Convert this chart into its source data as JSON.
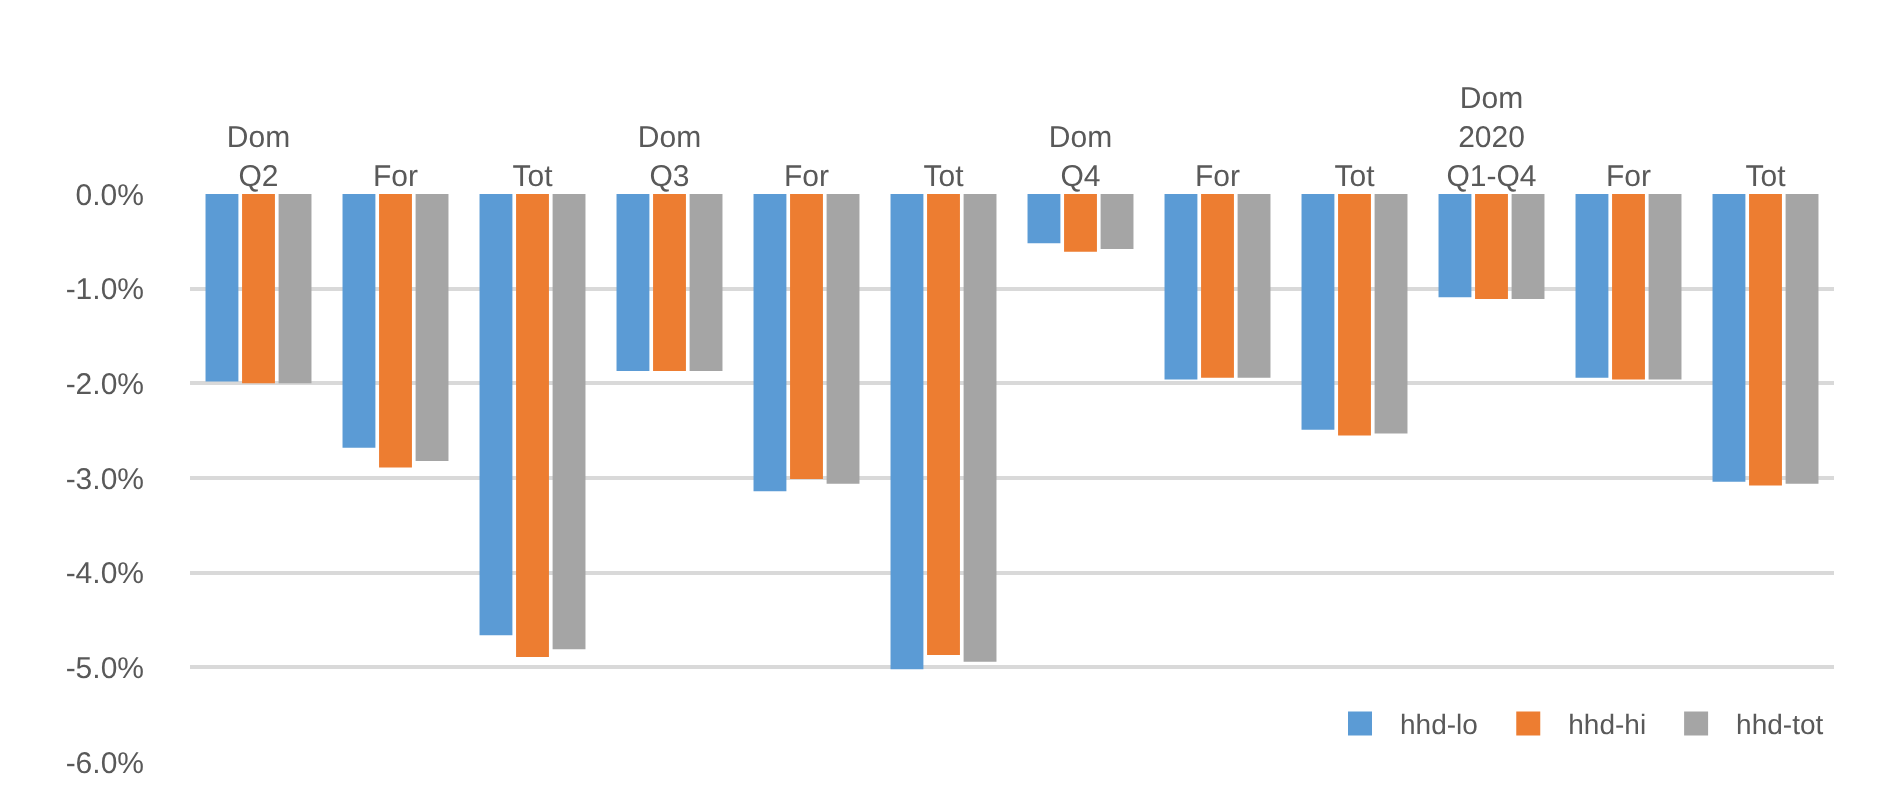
{
  "chart_data": {
    "type": "bar",
    "categories": [
      "Dom\nQ2",
      "For",
      "Tot",
      "Dom\nQ3",
      "For",
      "Tot",
      "Dom\nQ4",
      "For",
      "Tot",
      "Dom\n2020\nQ1-Q4",
      "For",
      "Tot"
    ],
    "series": [
      {
        "name": "hhd-lo",
        "color": "#5b9bd5",
        "values": [
          -1.98,
          -2.68,
          -4.66,
          -1.87,
          -3.14,
          -5.02,
          -0.52,
          -1.96,
          -2.49,
          -1.09,
          -1.94,
          -3.04
        ]
      },
      {
        "name": "hhd-hi",
        "color": "#ed7d31",
        "values": [
          -2.0,
          -2.89,
          -4.89,
          -1.87,
          -3.01,
          -4.87,
          -0.61,
          -1.94,
          -2.55,
          -1.11,
          -1.96,
          -3.08
        ]
      },
      {
        "name": "hhd-tot",
        "color": "#a5a5a5",
        "values": [
          -2.0,
          -2.82,
          -4.81,
          -1.87,
          -3.06,
          -4.94,
          -0.58,
          -1.94,
          -2.53,
          -1.11,
          -1.96,
          -3.06
        ]
      }
    ],
    "ylim": [
      -6,
      0
    ],
    "yticks": [
      {
        "value": 0,
        "label": "0.0%"
      },
      {
        "value": -1,
        "label": "-1.0%"
      },
      {
        "value": -2,
        "label": "-2.0%"
      },
      {
        "value": -3,
        "label": "-3.0%"
      },
      {
        "value": -4,
        "label": "-4.0%"
      },
      {
        "value": -5,
        "label": "-5.0%"
      },
      {
        "value": -6,
        "label": "-6.0%"
      }
    ],
    "grid": "y",
    "legend": "bottom right"
  }
}
